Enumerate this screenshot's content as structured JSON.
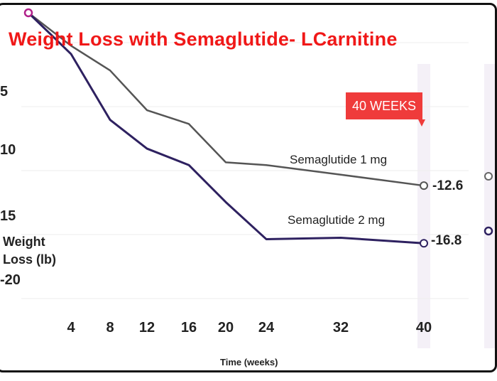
{
  "chart_data": {
    "type": "line",
    "title": "Weight Loss with Semaglutide- LCarnitine",
    "xlabel": "Time (weeks)",
    "ylabel": "Weight Loss (lb)",
    "x_tick_labels": [
      "4",
      "8",
      "12",
      "16",
      "20",
      "24",
      "32",
      "40"
    ],
    "y_tick_labels": [
      "5",
      "10",
      "15",
      "-20"
    ],
    "x": [
      0,
      4,
      8,
      12,
      16,
      20,
      24,
      32,
      40
    ],
    "ylim": [
      -27,
      0
    ],
    "grid": true,
    "annotation": "40 WEEKS",
    "series": [
      {
        "name": "Semaglutide 1 mg",
        "color": "#555555",
        "values": [
          0,
          -2.4,
          -4.2,
          -7.1,
          -8.1,
          -10.9,
          -11.1,
          -11.8,
          -12.6
        ],
        "end_label": "-12.6"
      },
      {
        "name": "Semaglutide 2 mg",
        "color": "#2e2160",
        "values": [
          0,
          -3.0,
          -7.8,
          -9.9,
          -11.1,
          -13.8,
          -16.5,
          -16.4,
          -16.8
        ],
        "end_label": "-16.8"
      }
    ],
    "start_marker_color": "#b0208a"
  }
}
